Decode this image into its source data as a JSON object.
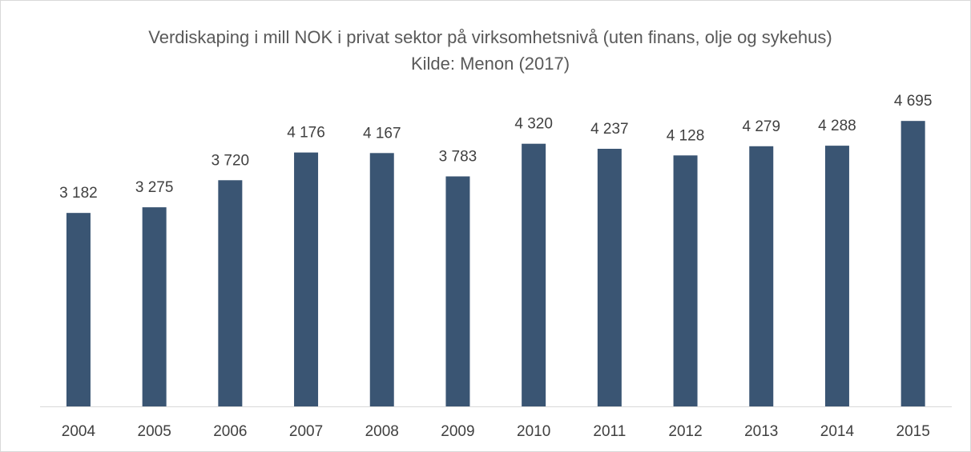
{
  "chart_data": {
    "type": "bar",
    "title": "Verdiskaping i mill NOK i privat sektor på virksomhetsnivå (uten finans, olje og sykehus) Kilde: Menon (2017)",
    "categories": [
      "2004",
      "2005",
      "2006",
      "2007",
      "2008",
      "2009",
      "2010",
      "2011",
      "2012",
      "2013",
      "2014",
      "2015"
    ],
    "values": [
      3182,
      3275,
      3720,
      4176,
      4167,
      3783,
      4320,
      4237,
      4128,
      4279,
      4288,
      4695
    ],
    "value_labels": [
      "3 182",
      "3 275",
      "3 720",
      "4 176",
      "4 167",
      "3 783",
      "4 320",
      "4 237",
      "4 128",
      "4 279",
      "4 288",
      "4 695"
    ],
    "color": "#3a5573",
    "ylim": [
      0,
      5000
    ]
  }
}
